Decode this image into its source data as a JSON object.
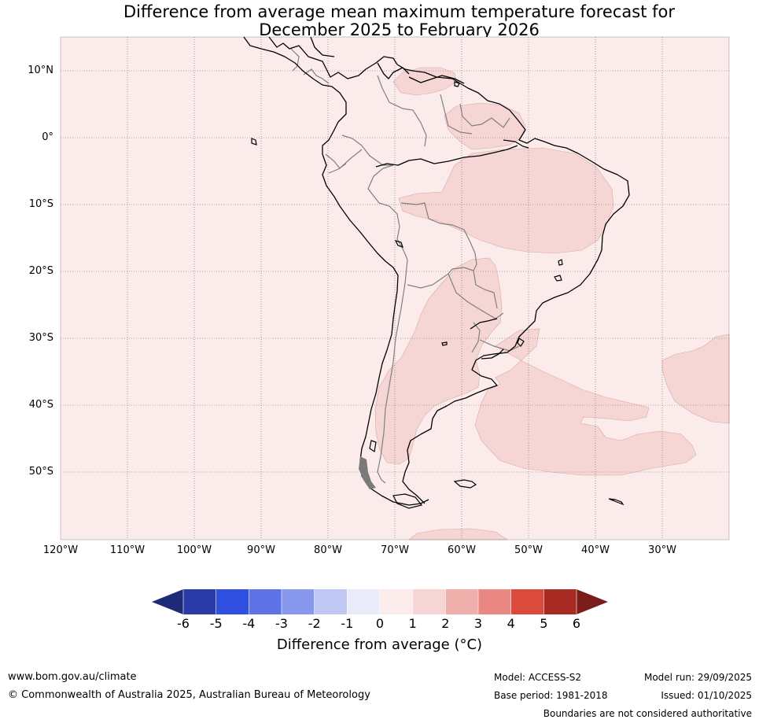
{
  "title": {
    "line1": "Difference from average mean maximum temperature forecast for",
    "line2": "December 2025 to February 2026"
  },
  "latitude_labels": [
    "10°N",
    "0°",
    "10°S",
    "20°S",
    "30°S",
    "40°S",
    "50°S"
  ],
  "longitude_labels": [
    "120°W",
    "110°W",
    "100°W",
    "90°W",
    "80°W",
    "70°W",
    "60°W",
    "50°W",
    "40°W",
    "30°W"
  ],
  "colorbar": {
    "ticks": [
      "-6",
      "-5",
      "-4",
      "-3",
      "-2",
      "-1",
      "0",
      "1",
      "2",
      "3",
      "4",
      "5",
      "6"
    ],
    "colors": [
      "#2a3ba8",
      "#2f4fe0",
      "#5c72e6",
      "#8898ee",
      "#c2c8f4",
      "#e9ebf8",
      "#fbebea",
      "#f5d6d4",
      "#efafaa",
      "#e98882",
      "#db4b3d",
      "#a92a22"
    ],
    "low_extend_color": "#1e2a78",
    "high_extend_color": "#7a1c1a",
    "label": "Difference from average (°C)"
  },
  "map_colors": {
    "ocean_background": "#fbebea",
    "anomaly_1_to_2": "#f5d6d4",
    "coastline": "#000000",
    "borders": "#808080"
  },
  "footer": {
    "website": "www.bom.gov.au/climate",
    "copyright": "© Commonwealth of Australia 2025, Australian Bureau of Meteorology",
    "model": "Model: ACCESS-S2",
    "base_period": "Base period: 1981-2018",
    "model_run": "Model run: 29/09/2025",
    "issued": "Issued: 01/10/2025",
    "disclaimer": "Boundaries are not considered authoritative"
  }
}
